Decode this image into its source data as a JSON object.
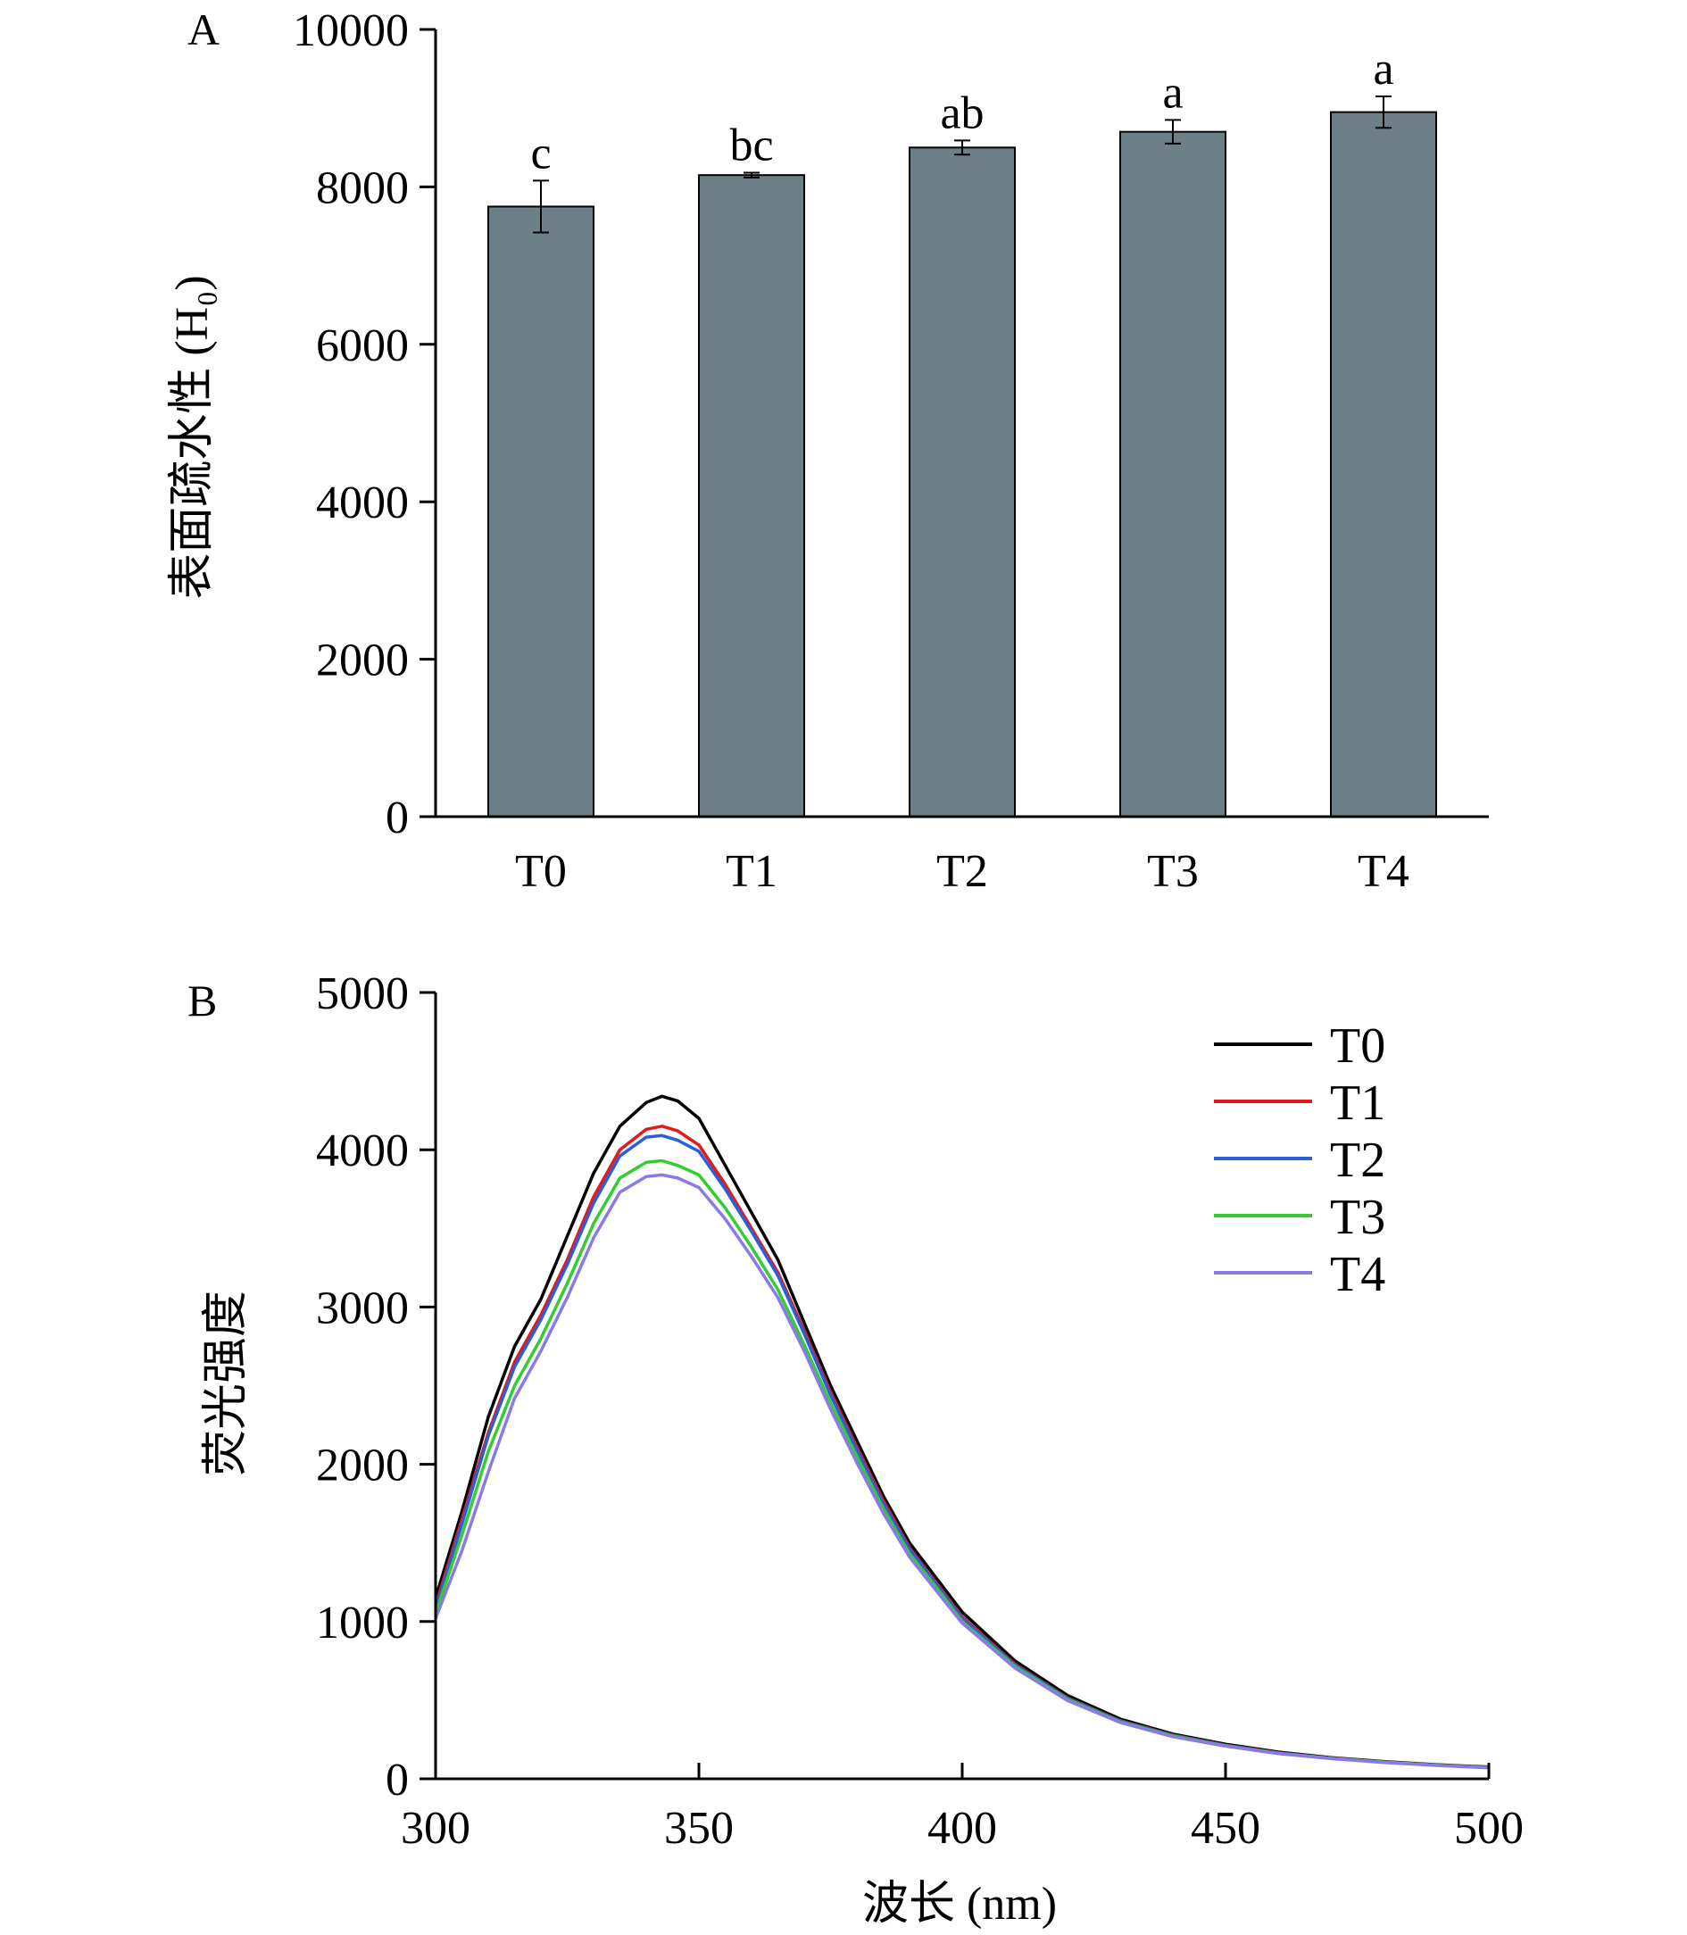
{
  "chart_data": [
    {
      "panel_label": "A",
      "type": "bar",
      "categories": [
        "T0",
        "T1",
        "T2",
        "T3",
        "T4"
      ],
      "values": [
        7750,
        8150,
        8500,
        8700,
        8950
      ],
      "errors": [
        330,
        30,
        90,
        150,
        200
      ],
      "significance": [
        "c",
        "bc",
        "ab",
        "a",
        "a"
      ],
      "ylabel": "表面疏水性 (H₀)",
      "xlabel": "",
      "ylim": [
        0,
        10000
      ],
      "yticks": [
        "0",
        "2000",
        "4000",
        "6000",
        "8000",
        "10000"
      ],
      "bar_color": "#6d7f87",
      "grid": false
    },
    {
      "panel_label": "B",
      "type": "line",
      "xlabel": "波长 (nm)",
      "ylabel": "荧光强度",
      "xlim": [
        300,
        500
      ],
      "ylim": [
        0,
        5000
      ],
      "xticks": [
        "300",
        "350",
        "400",
        "450",
        "500"
      ],
      "yticks": [
        "0",
        "1000",
        "2000",
        "3000",
        "4000",
        "5000"
      ],
      "legend_position": "top-right",
      "grid": false,
      "x": [
        300,
        305,
        310,
        315,
        320,
        325,
        330,
        335,
        340,
        343,
        346,
        350,
        355,
        360,
        365,
        370,
        375,
        380,
        385,
        390,
        395,
        400,
        410,
        420,
        430,
        440,
        450,
        460,
        470,
        480,
        490,
        500
      ],
      "series": [
        {
          "name": "T0",
          "color": "#000000",
          "values": [
            1150,
            1700,
            2300,
            2750,
            3050,
            3450,
            3850,
            4150,
            4300,
            4340,
            4310,
            4200,
            3900,
            3600,
            3300,
            2900,
            2500,
            2150,
            1800,
            1500,
            1280,
            1060,
            750,
            530,
            380,
            285,
            220,
            170,
            135,
            110,
            90,
            75
          ]
        },
        {
          "name": "T1",
          "color": "#e31a1c",
          "values": [
            1100,
            1650,
            2200,
            2650,
            2950,
            3300,
            3700,
            4000,
            4130,
            4150,
            4120,
            4030,
            3780,
            3500,
            3220,
            2850,
            2460,
            2110,
            1770,
            1470,
            1250,
            1030,
            730,
            515,
            370,
            278,
            214,
            165,
            132,
            108,
            88,
            73
          ]
        },
        {
          "name": "T2",
          "color": "#2b5fd9",
          "values": [
            1080,
            1620,
            2180,
            2620,
            2920,
            3270,
            3660,
            3960,
            4080,
            4090,
            4060,
            3990,
            3750,
            3480,
            3200,
            2830,
            2440,
            2090,
            1750,
            1460,
            1240,
            1020,
            725,
            512,
            368,
            276,
            212,
            164,
            131,
            107,
            87,
            72
          ]
        },
        {
          "name": "T3",
          "color": "#33cc33",
          "values": [
            1050,
            1550,
            2080,
            2500,
            2800,
            3150,
            3530,
            3820,
            3920,
            3930,
            3900,
            3840,
            3630,
            3380,
            3110,
            2760,
            2390,
            2050,
            1720,
            1430,
            1220,
            1000,
            715,
            505,
            362,
            272,
            210,
            162,
            130,
            106,
            86,
            71
          ]
        },
        {
          "name": "T4",
          "color": "#8a7ae8",
          "values": [
            1020,
            1450,
            1950,
            2420,
            2720,
            3060,
            3440,
            3730,
            3830,
            3840,
            3820,
            3760,
            3560,
            3320,
            3060,
            2720,
            2350,
            2010,
            1690,
            1410,
            1200,
            990,
            705,
            498,
            358,
            268,
            208,
            160,
            128,
            104,
            85,
            70
          ]
        }
      ]
    }
  ]
}
